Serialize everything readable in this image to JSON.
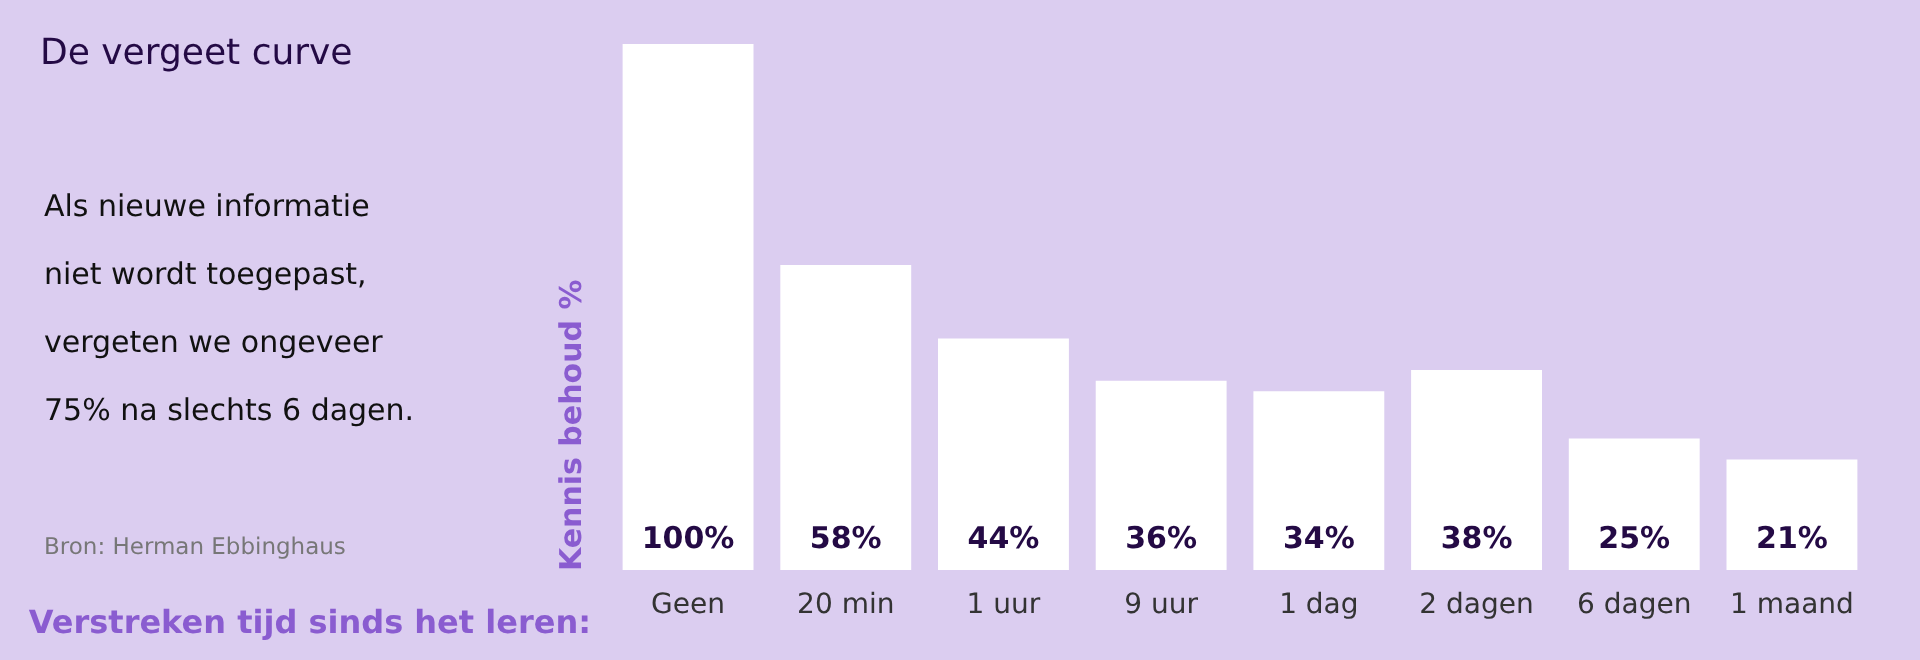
{
  "chart_data": {
    "type": "bar",
    "title": "De vergeet curve",
    "xlabel": "Verstreken tijd sinds het leren:",
    "ylabel": "Kennis behoud %",
    "categories": [
      "Geen",
      "20 min",
      "1 uur",
      "9 uur",
      "1 dag",
      "2 dagen",
      "6 dagen",
      "1 maand"
    ],
    "values": [
      100,
      58,
      44,
      36,
      34,
      38,
      25,
      21
    ],
    "value_labels": [
      "100%",
      "58%",
      "44%",
      "36%",
      "34%",
      "38%",
      "25%",
      "21%"
    ],
    "color": "#ffffff",
    "annotations": [
      "Als nieuwe informatie\nniet wordt toegepast,\nvergeten we ongeveer\n75% na slechts 6 dagen.",
      "Bron: Herman Ebbinghaus"
    ],
    "grid": false
  }
}
